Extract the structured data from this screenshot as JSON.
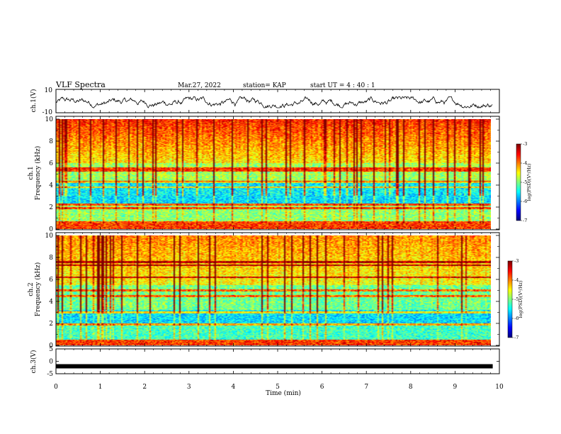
{
  "header": {
    "title": "VLF Spectra",
    "date": "Mar.27, 2022",
    "station": "station= KAP",
    "start": "start UT =  4 : 40 : 1"
  },
  "chart_data": [
    {
      "name": "ch1-waveform",
      "type": "line",
      "ylabel": "ch.1(V)",
      "yticks": [
        "10",
        "-10"
      ],
      "ylim": [
        -10,
        10
      ],
      "xlim": [
        0,
        10
      ],
      "approx_range": [
        -6,
        4
      ],
      "color": "#000000"
    },
    {
      "name": "ch1-spectrogram",
      "type": "heatmap",
      "ylabel_channel": "ch.1",
      "ylabel": "Frequency (kHz)",
      "yticks": [
        "0",
        "2",
        "4",
        "6",
        "8",
        "10"
      ],
      "ylim": [
        0,
        10
      ],
      "xlim": [
        0,
        9.85
      ],
      "colorbar": {
        "label": "log(PSD)(V²/Hz)",
        "ticks": [
          "-3",
          "-4",
          "-5",
          "-6",
          "-7"
        ],
        "range": [
          -7,
          -3
        ]
      },
      "bands_khz": [
        0.3,
        0.6,
        1.9,
        2.2,
        3.8,
        4.3,
        5.3,
        5.5
      ]
    },
    {
      "name": "ch2-spectrogram",
      "type": "heatmap",
      "ylabel_channel": "ch.2",
      "ylabel": "Frequency (kHz)",
      "yticks": [
        "0",
        "2",
        "4",
        "6",
        "8",
        "10"
      ],
      "ylim": [
        0,
        10
      ],
      "xlim": [
        0,
        9.85
      ],
      "colorbar": {
        "label": "log(PSD)(V²/Hz)",
        "ticks": [
          "-3",
          "-4",
          "-5",
          "-6",
          "-7"
        ],
        "range": [
          -7,
          -3
        ]
      },
      "bands_khz": [
        0.4,
        1.9,
        3.0,
        4.5,
        5.0,
        6.2,
        7.3,
        7.6
      ]
    },
    {
      "name": "ch3-waveform",
      "type": "line",
      "ylabel": "ch.3(V)",
      "yticks": [
        "5",
        "0",
        "-5"
      ],
      "ylim": [
        -5,
        5
      ],
      "xlim": [
        0,
        9.85
      ],
      "constant_value": -2,
      "color": "#000000"
    }
  ],
  "xaxis": {
    "label": "Time (min)",
    "ticks": [
      "0",
      "1",
      "2",
      "3",
      "4",
      "5",
      "6",
      "7",
      "8",
      "9",
      "10"
    ],
    "range": [
      0,
      10
    ]
  }
}
